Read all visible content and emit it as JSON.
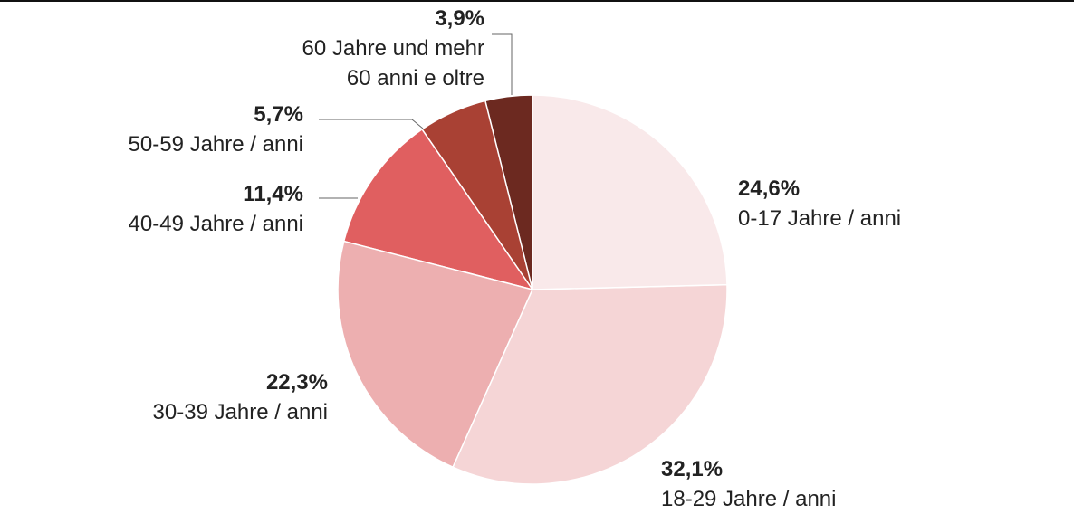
{
  "chart_data": {
    "type": "pie",
    "start": "top, clockwise",
    "slices": [
      {
        "value": 24.6,
        "pct": "24,6%",
        "label": [
          "0-17 Jahre / anni"
        ],
        "color": "#f9e9ea"
      },
      {
        "value": 32.1,
        "pct": "32,1%",
        "label": [
          "18-29 Jahre / anni"
        ],
        "color": "#f5d5d6"
      },
      {
        "value": 22.3,
        "pct": "22,3%",
        "label": [
          "30-39 Jahre / anni"
        ],
        "color": "#edafb0"
      },
      {
        "value": 11.4,
        "pct": "11,4%",
        "label": [
          "40-49 Jahre / anni"
        ],
        "color": "#e05f60"
      },
      {
        "value": 5.7,
        "pct": "5,7%",
        "label": [
          "50-59 Jahre / anni"
        ],
        "color": "#a94134"
      },
      {
        "value": 3.9,
        "pct": "3,9%",
        "label": [
          "60 Jahre und mehr",
          "60 anni e oltre"
        ],
        "color": "#6c2920"
      }
    ]
  }
}
